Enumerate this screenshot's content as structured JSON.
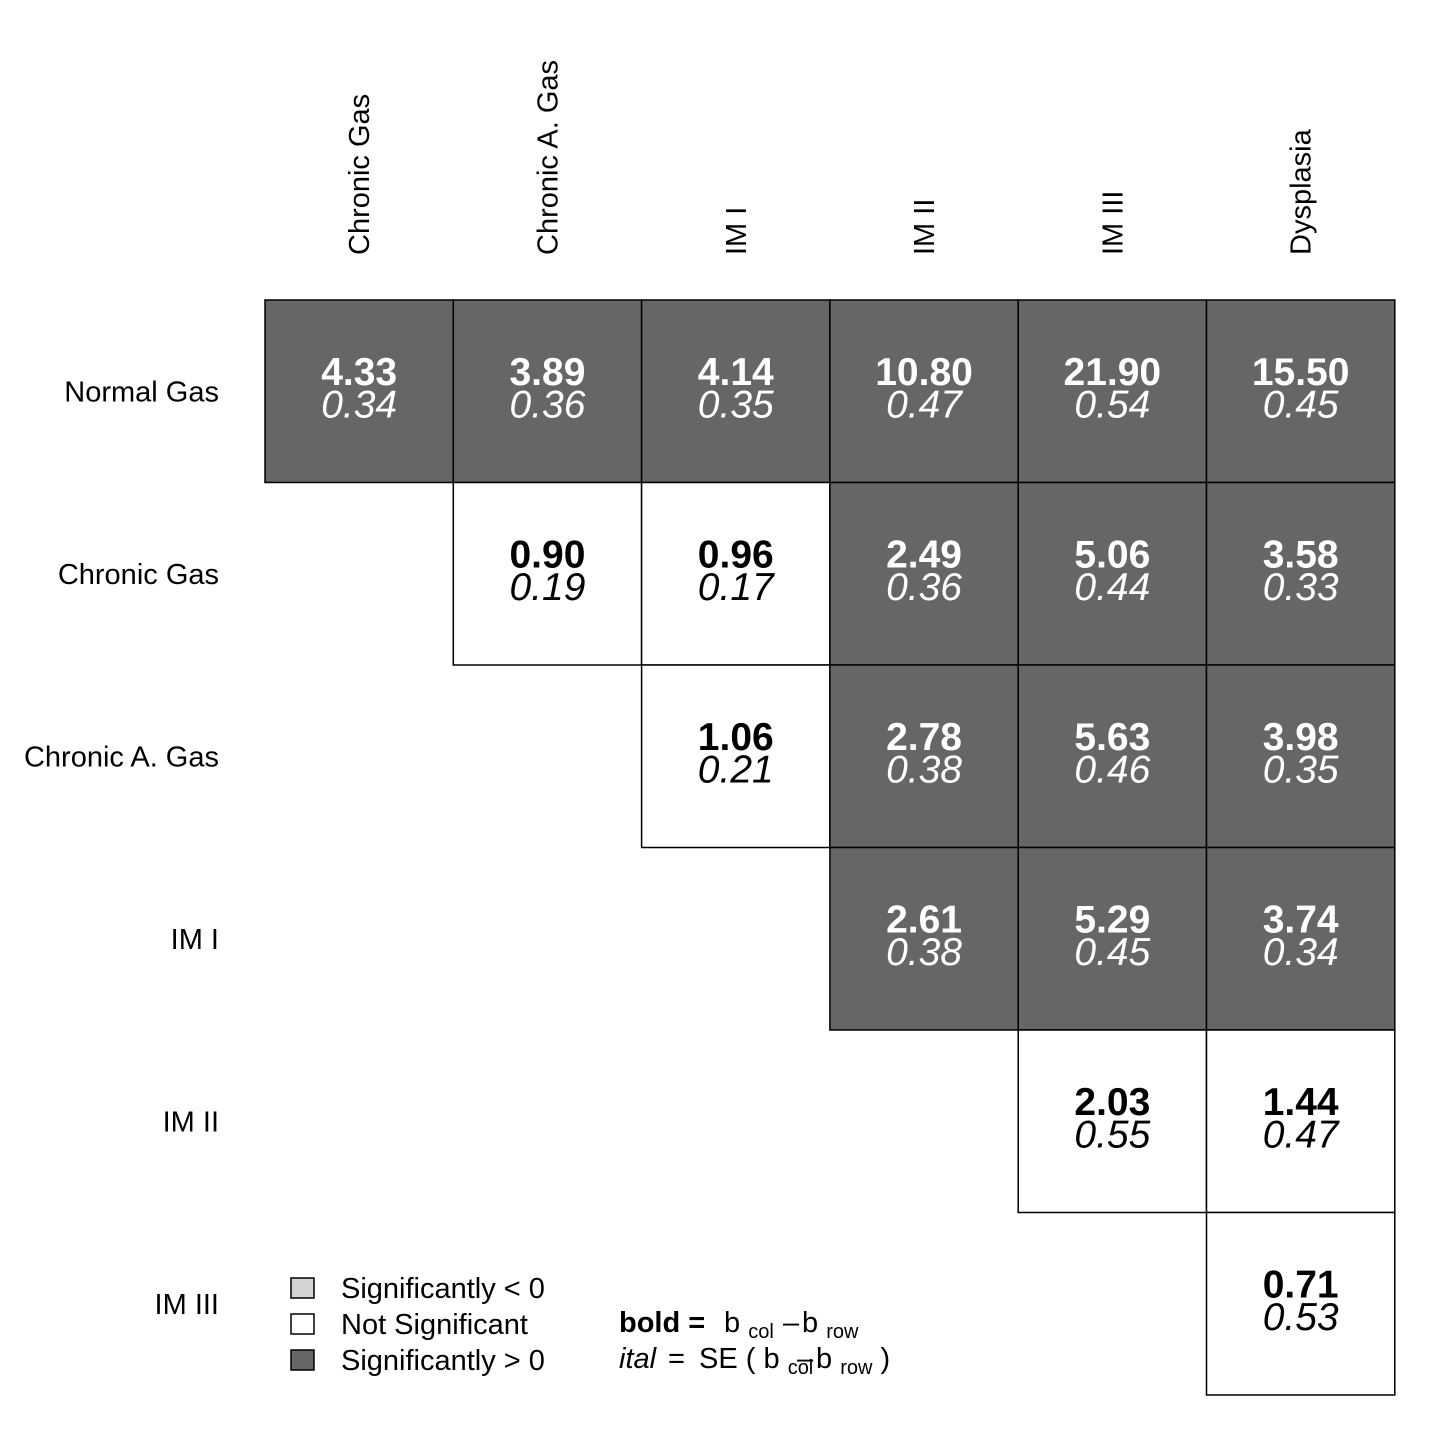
{
  "colors": {
    "sig_positive": "#666666",
    "sig_negative": "#d3d3d3",
    "not_significant": "#ffffff",
    "text_on_dark": "#ffffff",
    "text_on_light": "#000000",
    "border": "#000000"
  },
  "chart_data": {
    "type": "table",
    "columns": [
      "Chronic Gas",
      "Chronic A. Gas",
      "IM I",
      "IM II",
      "IM III",
      "Dysplasia"
    ],
    "rows": [
      "Normal Gas",
      "Chronic Gas",
      "Chronic A. Gas",
      "IM I",
      "IM II",
      "IM III"
    ],
    "cells": [
      [
        {
          "est": "4.33",
          "se": "0.34",
          "sig": "positive"
        },
        {
          "est": "3.89",
          "se": "0.36",
          "sig": "positive"
        },
        {
          "est": "4.14",
          "se": "0.35",
          "sig": "positive"
        },
        {
          "est": "10.80",
          "se": "0.47",
          "sig": "positive"
        },
        {
          "est": "21.90",
          "se": "0.54",
          "sig": "positive"
        },
        {
          "est": "15.50",
          "se": "0.45",
          "sig": "positive"
        }
      ],
      [
        null,
        {
          "est": "0.90",
          "se": "0.19",
          "sig": "none"
        },
        {
          "est": "0.96",
          "se": "0.17",
          "sig": "none"
        },
        {
          "est": "2.49",
          "se": "0.36",
          "sig": "positive"
        },
        {
          "est": "5.06",
          "se": "0.44",
          "sig": "positive"
        },
        {
          "est": "3.58",
          "se": "0.33",
          "sig": "positive"
        }
      ],
      [
        null,
        null,
        {
          "est": "1.06",
          "se": "0.21",
          "sig": "none"
        },
        {
          "est": "2.78",
          "se": "0.38",
          "sig": "positive"
        },
        {
          "est": "5.63",
          "se": "0.46",
          "sig": "positive"
        },
        {
          "est": "3.98",
          "se": "0.35",
          "sig": "positive"
        }
      ],
      [
        null,
        null,
        null,
        {
          "est": "2.61",
          "se": "0.38",
          "sig": "positive"
        },
        {
          "est": "5.29",
          "se": "0.45",
          "sig": "positive"
        },
        {
          "est": "3.74",
          "se": "0.34",
          "sig": "positive"
        }
      ],
      [
        null,
        null,
        null,
        null,
        {
          "est": "2.03",
          "se": "0.55",
          "sig": "none"
        },
        {
          "est": "1.44",
          "se": "0.47",
          "sig": "none"
        }
      ],
      [
        null,
        null,
        null,
        null,
        null,
        {
          "est": "0.71",
          "se": "0.53",
          "sig": "none"
        }
      ]
    ],
    "legend": [
      {
        "label": "Significantly < 0",
        "sig": "negative"
      },
      {
        "label": "Not Significant",
        "sig": "none"
      },
      {
        "label": "Significantly > 0",
        "sig": "positive"
      }
    ],
    "formula": {
      "bold_label": "bold =",
      "bold_b1": "b",
      "bold_sub1": "col",
      "bold_minus": "–",
      "bold_b2": "b",
      "bold_sub2": "row",
      "ital_label": "ital",
      "ital_eq": "=",
      "ital_se": "SE",
      "ital_open": "(",
      "ital_b1": "b",
      "ital_sub1": "col",
      "ital_minus": "–",
      "ital_b2": "b",
      "ital_sub2": "row",
      "ital_close": ")"
    }
  }
}
